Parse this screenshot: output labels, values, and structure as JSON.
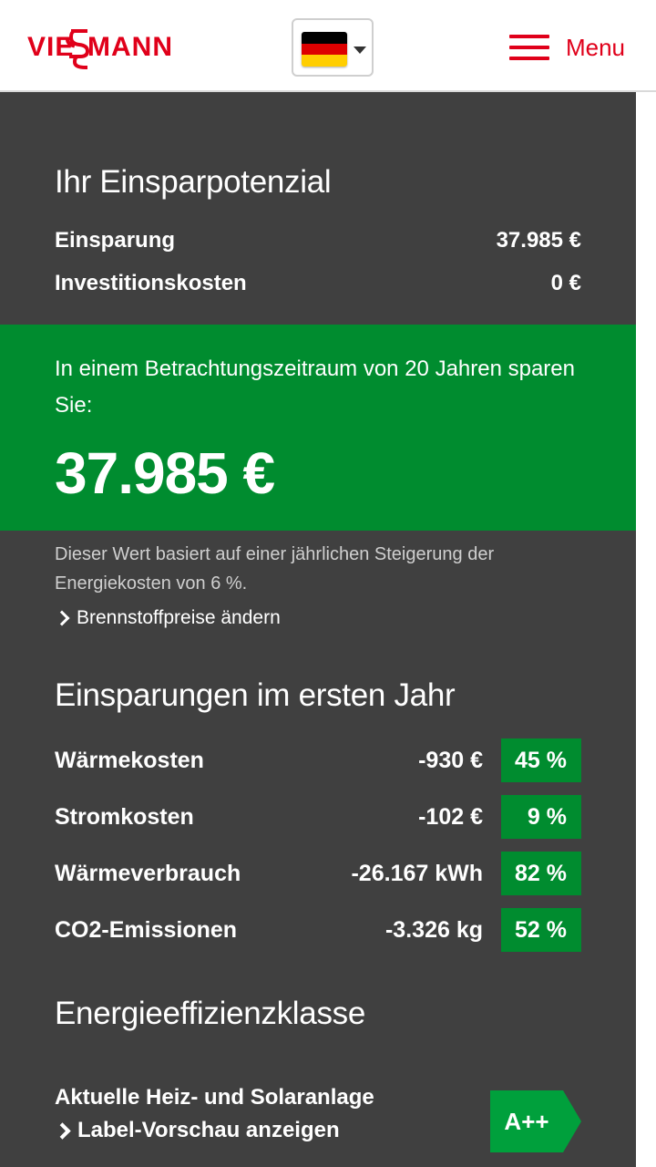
{
  "header": {
    "logo_text": "VIESSMANN",
    "language": "Deutsch",
    "menu_label": "Menu",
    "colors": {
      "brand_red": "#e0001a"
    }
  },
  "potential": {
    "title": "Ihr Einsparpotenzial",
    "rows": [
      {
        "label": "Einsparung",
        "value": "37.985 €"
      },
      {
        "label": "Investitionskosten",
        "value": "0 €"
      }
    ]
  },
  "highlight": {
    "text": "In einem Betrachtungszeitraum von 20 Jahren sparen Sie:",
    "amount": "37.985 €",
    "color": "#008c2f"
  },
  "note": {
    "text": "Dieser Wert basiert auf einer jährlichen Steigerung der Energiekosten von 6 %.",
    "link": "Brennstoffpreise ändern"
  },
  "first_year": {
    "title": "Einsparungen im ersten Jahr",
    "rows": [
      {
        "label": "Wärmekosten",
        "value": "-930 €",
        "percent": "45 %"
      },
      {
        "label": "Stromkosten",
        "value": "-102 €",
        "percent": "9 %"
      },
      {
        "label": "Wärmeverbrauch",
        "value": "-26.167 kWh",
        "percent": "82 %"
      },
      {
        "label": "CO2-Emissionen",
        "value": "-3.326 kg",
        "percent": "52 %"
      }
    ]
  },
  "efficiency": {
    "title": "Energieeffizienzklasse",
    "system_label": "Aktuelle Heiz- und Solaranlage",
    "link": "Label-Vorschau anzeigen",
    "class": "A++",
    "class_color": "#00a03c"
  }
}
